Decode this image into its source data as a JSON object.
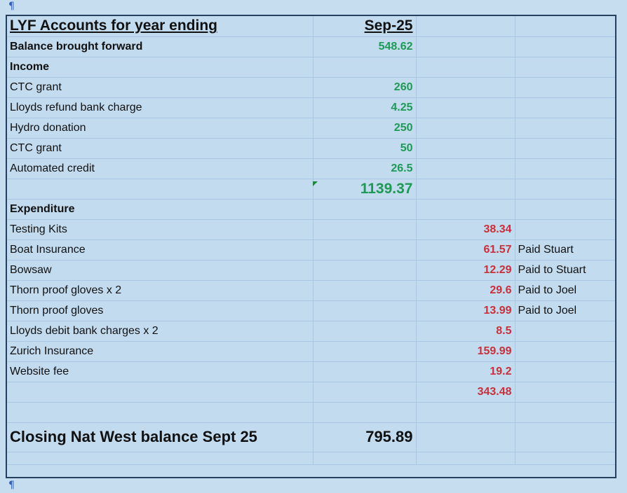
{
  "marks": {
    "pilcrow": "¶"
  },
  "sheet": {
    "title": "LYF Accounts for year ending",
    "year": "Sep-25",
    "balance_bf": {
      "label": "Balance brought forward",
      "value": "548.62"
    },
    "income_label": "Income",
    "income": [
      {
        "label": "CTC grant",
        "value": "260"
      },
      {
        "label": "Lloyds refund bank charge",
        "value": "4.25"
      },
      {
        "label": "Hydro donation",
        "value": "250"
      },
      {
        "label": "CTC grant",
        "value": "50"
      },
      {
        "label": "Automated credit",
        "value": "26.5"
      }
    ],
    "income_total": "1139.37",
    "expenditure_label": "Expenditure",
    "expenditure": [
      {
        "label": "Testing Kits",
        "value": "38.34",
        "note": ""
      },
      {
        "label": "Boat Insurance",
        "value": "61.57",
        "note": "Paid Stuart"
      },
      {
        "label": "Bowsaw",
        "value": "12.29",
        "note": "Paid to Stuart"
      },
      {
        "label": "Thorn proof gloves x 2",
        "value": "29.6",
        "note": "Paid to Joel"
      },
      {
        "label": "Thorn proof gloves",
        "value": "13.99",
        "note": "Paid to Joel"
      },
      {
        "label": "Lloyds debit bank charges x 2",
        "value": "8.5",
        "note": ""
      },
      {
        "label": "Zurich Insurance",
        "value": "159.99",
        "note": ""
      },
      {
        "label": "Website fee",
        "value": "19.2",
        "note": ""
      }
    ],
    "expenditure_total": "343.48",
    "closing": {
      "label": "Closing Nat West balance Sept 25",
      "value": "795.89"
    }
  },
  "colors": {
    "income": "#1e9a56",
    "expenditure": "#c8303a",
    "background": "#c6dcef"
  }
}
